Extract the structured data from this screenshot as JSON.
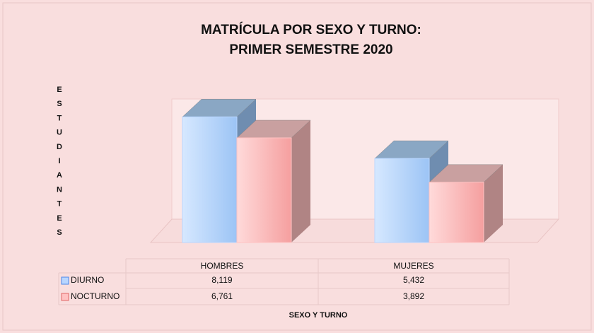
{
  "chart_data": {
    "type": "bar3d",
    "title": [
      "MATRÍCULA POR SEXO Y TURNO:",
      "PRIMER SEMESTRE 2020"
    ],
    "y_label": "ESTUDIANTES",
    "x_label": "SEXO Y TURNO",
    "categories": [
      "HOMBRES",
      "MUJERES"
    ],
    "series": [
      {
        "name": "DIURNO",
        "color": "#b9d6ff",
        "values": [
          8119,
          5432
        ],
        "value_labels": [
          "8,119",
          "5,432"
        ]
      },
      {
        "name": "NOCTURNO",
        "color": "#ffc2c2",
        "values": [
          6761,
          3892
        ],
        "value_labels": [
          "6,761",
          "3,892"
        ]
      }
    ],
    "ylim": [
      0,
      9000
    ]
  }
}
